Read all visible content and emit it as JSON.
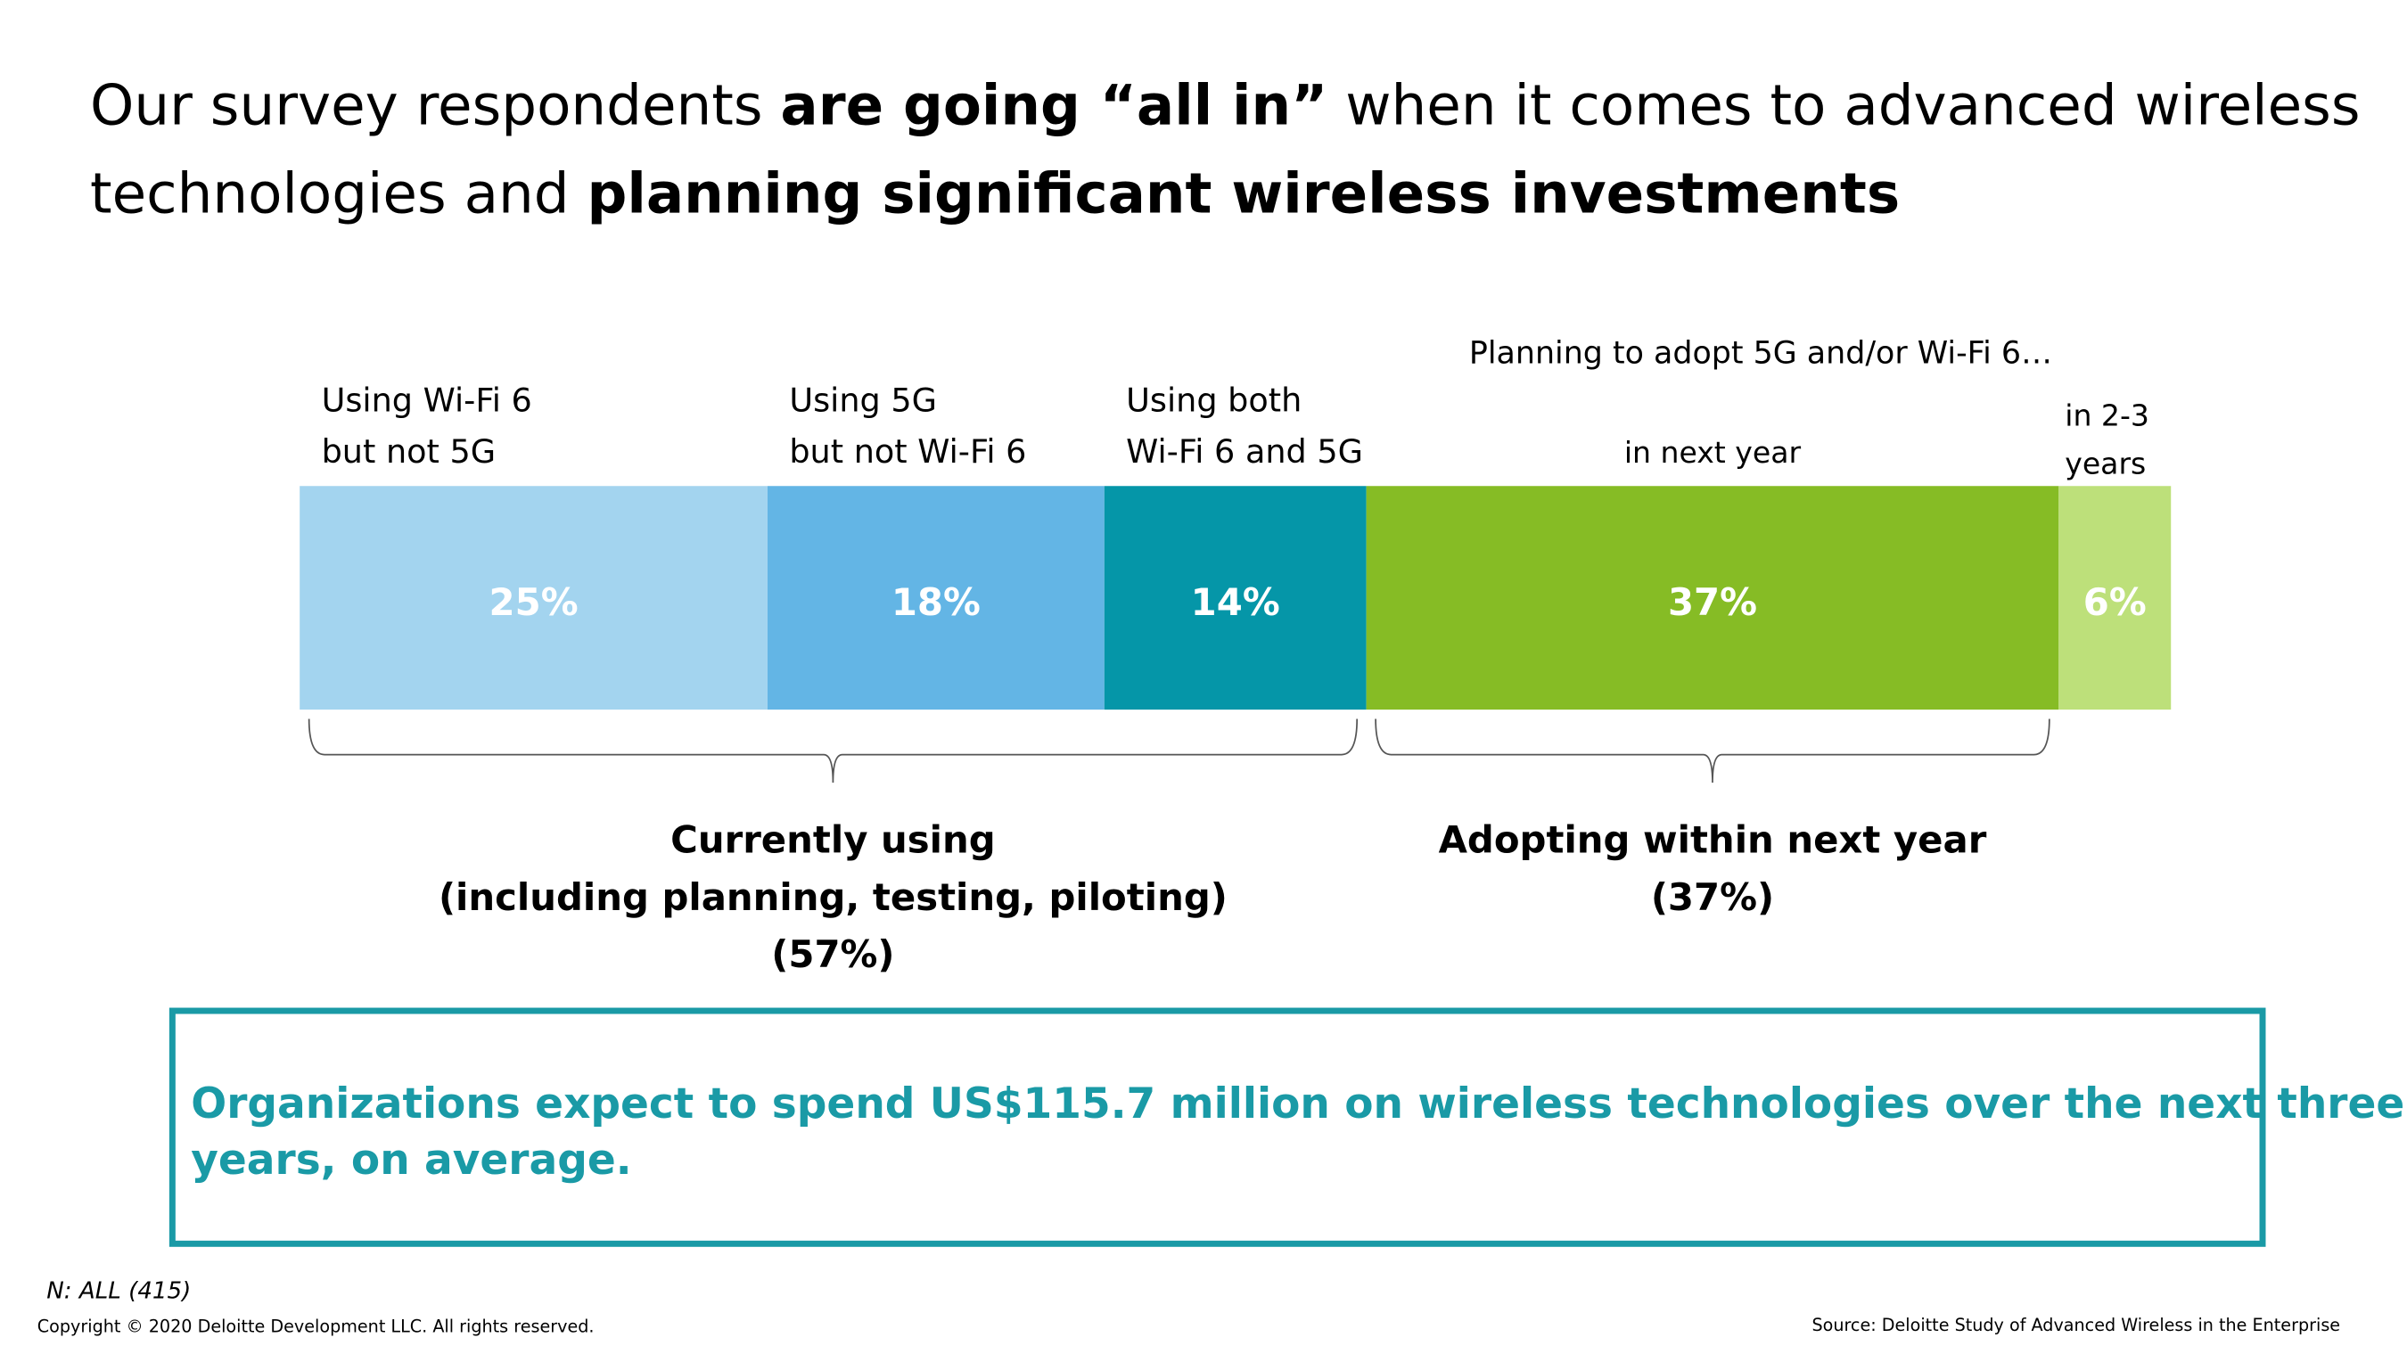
{
  "chart_data": {
    "type": "stacked-bar",
    "title": [
      [
        {
          "text": "Our survey respondents ",
          "bold": false
        },
        {
          "text": "are going “all in”",
          "bold": true
        },
        {
          "text": " when it comes to advanced wireless",
          "bold": false
        }
      ],
      [
        {
          "text": "technologies and ",
          "bold": false
        },
        {
          "text": "planning significant wireless investments",
          "bold": true
        }
      ]
    ],
    "header": "Planning to adopt 5G and/or Wi-Fi 6…",
    "xlim": [
      0,
      100
    ],
    "series": [
      {
        "name": [
          "Using Wi-Fi 6",
          "but not 5G"
        ],
        "color": "#a3d4ef",
        "values": [
          25
        ],
        "value_labels": [
          "25%"
        ]
      },
      {
        "name": [
          "Using 5G",
          "but not Wi-Fi 6"
        ],
        "color": "#63b5e5",
        "values": [
          18
        ],
        "value_labels": [
          "18%"
        ]
      },
      {
        "name": [
          "Using both",
          "Wi-Fi 6 and 5G"
        ],
        "color": "#0596a8",
        "values": [
          14
        ],
        "value_labels": [
          "14%"
        ]
      },
      {
        "name": [
          "in next year"
        ],
        "color": "#86bc25",
        "values": [
          37
        ],
        "value_labels": [
          "37%"
        ]
      },
      {
        "name": [
          "in 2-3",
          "years"
        ],
        "color": "#bde07a",
        "values": [
          6
        ],
        "value_labels": [
          "6%"
        ]
      }
    ],
    "groups": [
      {
        "label": [
          "Currently using",
          "(including planning, testing, piloting)",
          "(57%)"
        ]
      },
      {
        "label": [
          "Adopting within next year",
          "(37%)"
        ]
      }
    ],
    "callout": [
      "Organizations expect to spend US$115.7 million on wireless technologies over the next three",
      "years, on average."
    ],
    "note": "N: ALL (415)",
    "copyright": "Copyright © 2020 Deloitte Development LLC. All rights reserved.",
    "source": "Source: Deloitte Study of Advanced Wireless in the Enterprise"
  }
}
